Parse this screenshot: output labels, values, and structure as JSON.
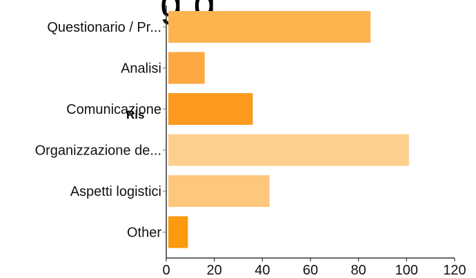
{
  "title_fragment": "g              g",
  "overlay_fragment": "Ris",
  "chart_data": {
    "type": "bar",
    "orientation": "horizontal",
    "title": "",
    "xlabel": "",
    "ylabel": "",
    "categories": [
      "Questionario / Pr...",
      "Analisi",
      "Comunicazione",
      "Organizzazione de...",
      "Aspetti logistici",
      "Other"
    ],
    "values": [
      85,
      16,
      36,
      101,
      43,
      9
    ],
    "bar_colors": [
      "#fdb44f",
      "#fca73f",
      "#fb9a1e",
      "#fdcf8f",
      "#fdc77c",
      "#fb9a0e"
    ],
    "xlim": [
      0,
      120
    ],
    "xticks": [
      0,
      20,
      40,
      60,
      80,
      100,
      120
    ],
    "grid": false,
    "legend": "none"
  }
}
